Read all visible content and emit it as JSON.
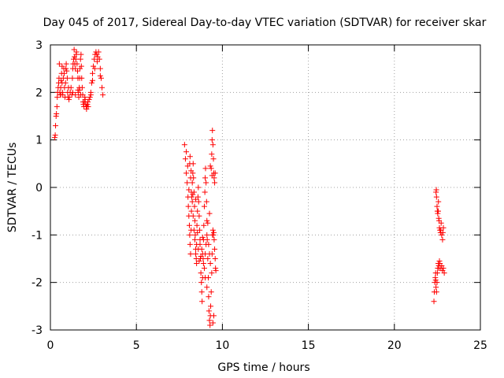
{
  "chart_data": {
    "type": "scatter",
    "title": "Day 045 of 2017, Sidereal Day-to-day VTEC variation (SDTVAR) for receiver skar",
    "xlabel": "GPS time / hours",
    "ylabel": "SDTVAR / TECUs",
    "xlim": [
      0,
      25
    ],
    "ylim": [
      -3,
      3
    ],
    "xticks": [
      0,
      5,
      10,
      15,
      20,
      25
    ],
    "yticks": [
      -3,
      -2,
      -1,
      0,
      1,
      2,
      3
    ],
    "xtick_labels": [
      "0",
      "5",
      "10",
      "15",
      "20",
      "25"
    ],
    "ytick_labels": [
      "-3",
      "-2",
      "-1",
      "0",
      "1",
      "2",
      "3"
    ],
    "grid": true,
    "marker": "+",
    "color": "#ff0000",
    "series": [
      {
        "name": "SDTVAR",
        "points": [
          [
            0.25,
            1.05
          ],
          [
            0.28,
            1.1
          ],
          [
            0.3,
            1.3
          ],
          [
            0.33,
            1.5
          ],
          [
            0.35,
            1.55
          ],
          [
            0.38,
            1.7
          ],
          [
            0.4,
            1.9
          ],
          [
            0.42,
            2.0
          ],
          [
            0.45,
            2.1
          ],
          [
            0.48,
            2.2
          ],
          [
            0.5,
            2.3
          ],
          [
            0.52,
            2.6
          ],
          [
            0.55,
            2.0
          ],
          [
            0.58,
            1.95
          ],
          [
            0.6,
            2.1
          ],
          [
            0.62,
            2.25
          ],
          [
            0.65,
            2.4
          ],
          [
            0.68,
            2.2
          ],
          [
            0.7,
            2.0
          ],
          [
            0.72,
            1.95
          ],
          [
            0.75,
            2.3
          ],
          [
            0.78,
            2.5
          ],
          [
            0.8,
            2.4
          ],
          [
            0.82,
            2.1
          ],
          [
            0.85,
            1.9
          ],
          [
            0.88,
            2.2
          ],
          [
            0.9,
            2.5
          ],
          [
            0.92,
            2.6
          ],
          [
            0.95,
            2.45
          ],
          [
            0.98,
            2.3
          ],
          [
            1.0,
            2.0
          ],
          [
            1.02,
            1.9
          ],
          [
            1.05,
            2.1
          ],
          [
            1.08,
            1.85
          ],
          [
            1.1,
            1.9
          ],
          [
            1.15,
            2.0
          ],
          [
            1.2,
            2.1
          ],
          [
            1.25,
            1.95
          ],
          [
            1.28,
            2.3
          ],
          [
            1.3,
            2.5
          ],
          [
            1.32,
            2.6
          ],
          [
            1.35,
            2.7
          ],
          [
            1.38,
            2.9
          ],
          [
            1.4,
            2.75
          ],
          [
            1.42,
            2.6
          ],
          [
            1.45,
            2.5
          ],
          [
            1.48,
            2.7
          ],
          [
            1.5,
            2.8
          ],
          [
            1.52,
            2.85
          ],
          [
            1.55,
            2.6
          ],
          [
            1.58,
            2.45
          ],
          [
            1.6,
            2.3
          ],
          [
            1.62,
            2.0
          ],
          [
            1.65,
            1.9
          ],
          [
            1.68,
            2.1
          ],
          [
            1.7,
            2.3
          ],
          [
            1.72,
            2.5
          ],
          [
            1.75,
            2.7
          ],
          [
            1.78,
            2.8
          ],
          [
            1.8,
            2.55
          ],
          [
            1.82,
            2.3
          ],
          [
            1.85,
            2.1
          ],
          [
            1.88,
            1.95
          ],
          [
            1.9,
            1.8
          ],
          [
            1.92,
            1.75
          ],
          [
            1.95,
            1.7
          ],
          [
            1.98,
            1.8
          ],
          [
            2.0,
            1.9
          ],
          [
            2.02,
            1.85
          ],
          [
            2.05,
            1.75
          ],
          [
            2.08,
            1.7
          ],
          [
            2.1,
            1.65
          ],
          [
            2.12,
            1.7
          ],
          [
            2.15,
            1.75
          ],
          [
            2.18,
            1.8
          ],
          [
            2.2,
            1.7
          ],
          [
            2.25,
            1.85
          ],
          [
            2.3,
            1.9
          ],
          [
            2.35,
            2.0
          ],
          [
            2.4,
            2.2
          ],
          [
            2.45,
            2.4
          ],
          [
            2.5,
            2.55
          ],
          [
            2.55,
            2.7
          ],
          [
            2.6,
            2.8
          ],
          [
            2.65,
            2.85
          ],
          [
            2.7,
            2.8
          ],
          [
            2.75,
            2.75
          ],
          [
            2.8,
            2.85
          ],
          [
            2.85,
            2.7
          ],
          [
            2.9,
            2.5
          ],
          [
            2.95,
            2.3
          ],
          [
            3.0,
            2.1
          ],
          [
            3.05,
            1.95
          ],
          [
            2.72,
            2.65
          ],
          [
            2.58,
            2.5
          ],
          [
            2.45,
            2.25
          ],
          [
            2.35,
            1.95
          ],
          [
            1.6,
            2.05
          ],
          [
            1.45,
            1.95
          ],
          [
            1.3,
            2.0
          ],
          [
            0.68,
            2.55
          ],
          [
            0.6,
            1.95
          ],
          [
            1.7,
            2.05
          ],
          [
            1.76,
            1.95
          ],
          [
            2.9,
            2.35
          ],
          [
            7.8,
            0.9
          ],
          [
            7.85,
            0.6
          ],
          [
            7.9,
            0.3
          ],
          [
            7.95,
            0.1
          ],
          [
            8.0,
            -0.2
          ],
          [
            8.02,
            -0.4
          ],
          [
            8.05,
            -0.6
          ],
          [
            8.08,
            -0.8
          ],
          [
            8.1,
            -1.0
          ],
          [
            8.12,
            -1.2
          ],
          [
            8.15,
            -1.4
          ],
          [
            8.18,
            -0.9
          ],
          [
            8.2,
            -0.5
          ],
          [
            8.22,
            -0.2
          ],
          [
            8.25,
            0.1
          ],
          [
            8.28,
            0.3
          ],
          [
            8.3,
            0.5
          ],
          [
            8.32,
            0.2
          ],
          [
            8.35,
            -0.1
          ],
          [
            8.38,
            -0.4
          ],
          [
            8.4,
            -0.7
          ],
          [
            8.42,
            -1.0
          ],
          [
            8.45,
            -1.3
          ],
          [
            8.48,
            -1.5
          ],
          [
            8.5,
            -1.2
          ],
          [
            8.52,
            -0.8
          ],
          [
            8.55,
            -0.5
          ],
          [
            8.58,
            -0.2
          ],
          [
            8.6,
            0.0
          ],
          [
            8.62,
            -0.3
          ],
          [
            8.65,
            -0.6
          ],
          [
            8.68,
            -0.9
          ],
          [
            8.7,
            -1.2
          ],
          [
            8.72,
            -1.5
          ],
          [
            8.75,
            -1.8
          ],
          [
            8.78,
            -2.0
          ],
          [
            8.8,
            -2.2
          ],
          [
            8.82,
            -2.4
          ],
          [
            8.85,
            -1.9
          ],
          [
            8.88,
            -1.5
          ],
          [
            8.9,
            -1.1
          ],
          [
            8.92,
            -0.8
          ],
          [
            8.95,
            -0.4
          ],
          [
            8.98,
            -0.1
          ],
          [
            9.0,
            0.2
          ],
          [
            9.02,
            0.4
          ],
          [
            9.05,
            0.1
          ],
          [
            9.08,
            -0.3
          ],
          [
            9.1,
            -0.7
          ],
          [
            9.12,
            -1.1
          ],
          [
            9.15,
            -1.5
          ],
          [
            9.18,
            -1.9
          ],
          [
            9.2,
            -2.3
          ],
          [
            9.22,
            -2.6
          ],
          [
            9.25,
            -2.8
          ],
          [
            9.28,
            -2.9
          ],
          [
            9.3,
            -2.7
          ],
          [
            9.32,
            -2.5
          ],
          [
            9.35,
            -2.2
          ],
          [
            9.38,
            -1.8
          ],
          [
            9.4,
            -1.4
          ],
          [
            9.42,
            -1.0
          ],
          [
            9.45,
            -0.9
          ],
          [
            9.48,
            -1.0
          ],
          [
            9.5,
            -0.95
          ],
          [
            9.52,
            -1.1
          ],
          [
            9.55,
            -1.3
          ],
          [
            9.58,
            -1.5
          ],
          [
            9.6,
            -1.7
          ],
          [
            9.62,
            -1.75
          ],
          [
            9.35,
            0.4
          ],
          [
            9.38,
            0.7
          ],
          [
            9.4,
            1.0
          ],
          [
            9.42,
            1.2
          ],
          [
            9.45,
            0.9
          ],
          [
            9.48,
            0.6
          ],
          [
            9.5,
            0.3
          ],
          [
            9.52,
            0.2
          ],
          [
            9.55,
            0.1
          ],
          [
            9.58,
            0.3
          ],
          [
            8.1,
            0.5
          ],
          [
            8.15,
            0.2
          ],
          [
            8.2,
            -0.1
          ],
          [
            8.25,
            -0.3
          ],
          [
            8.3,
            -0.6
          ],
          [
            8.35,
            -0.9
          ],
          [
            8.4,
            -1.1
          ],
          [
            8.45,
            -1.4
          ],
          [
            8.5,
            -1.6
          ],
          [
            8.6,
            -1.3
          ],
          [
            8.7,
            -1.1
          ],
          [
            8.8,
            -1.3
          ],
          [
            8.9,
            -1.6
          ],
          [
            9.0,
            -1.4
          ],
          [
            9.05,
            -1.2
          ],
          [
            9.1,
            -1.0
          ],
          [
            9.2,
            -1.2
          ],
          [
            9.25,
            -1.4
          ],
          [
            9.3,
            -1.6
          ],
          [
            9.45,
            -2.85
          ],
          [
            9.5,
            -2.7
          ],
          [
            9.1,
            -2.1
          ],
          [
            9.0,
            -1.9
          ],
          [
            8.95,
            -1.7
          ],
          [
            8.85,
            -1.4
          ],
          [
            7.9,
            0.75
          ],
          [
            7.98,
            0.45
          ],
          [
            8.05,
            -0.05
          ],
          [
            8.12,
            0.65
          ],
          [
            8.18,
            0.35
          ],
          [
            8.28,
            -0.15
          ],
          [
            8.45,
            -0.25
          ],
          [
            8.55,
            -0.95
          ],
          [
            8.65,
            -1.55
          ],
          [
            8.75,
            -1.45
          ],
          [
            8.85,
            -1.05
          ],
          [
            9.15,
            -0.75
          ],
          [
            9.25,
            -0.55
          ],
          [
            9.3,
            0.45
          ],
          [
            9.4,
            0.25
          ],
          [
            22.3,
            -2.4
          ],
          [
            22.32,
            -2.2
          ],
          [
            22.35,
            -2.0
          ],
          [
            22.38,
            -1.9
          ],
          [
            22.4,
            -1.8
          ],
          [
            22.42,
            -2.1
          ],
          [
            22.45,
            -2.2
          ],
          [
            22.48,
            -2.0
          ],
          [
            22.5,
            -1.8
          ],
          [
            22.52,
            -1.7
          ],
          [
            22.55,
            -1.6
          ],
          [
            22.58,
            -1.65
          ],
          [
            22.6,
            -1.7
          ],
          [
            22.62,
            -1.55
          ],
          [
            22.65,
            -1.6
          ],
          [
            22.7,
            -1.7
          ],
          [
            22.75,
            -1.65
          ],
          [
            22.8,
            -1.75
          ],
          [
            22.85,
            -1.7
          ],
          [
            22.9,
            -1.8
          ],
          [
            22.42,
            -0.1
          ],
          [
            22.45,
            -0.2
          ],
          [
            22.48,
            -0.4
          ],
          [
            22.5,
            -0.5
          ],
          [
            22.52,
            -0.55
          ],
          [
            22.55,
            -0.5
          ],
          [
            22.58,
            -0.65
          ],
          [
            22.6,
            -0.7
          ],
          [
            22.62,
            -0.85
          ],
          [
            22.65,
            -0.9
          ],
          [
            22.68,
            -0.95
          ],
          [
            22.7,
            -0.9
          ],
          [
            22.75,
            -1.0
          ],
          [
            22.8,
            -1.1
          ],
          [
            22.85,
            -0.85
          ],
          [
            22.44,
            -0.05
          ],
          [
            22.56,
            -0.3
          ],
          [
            22.72,
            -0.75
          ],
          [
            22.82,
            -0.95
          ],
          [
            22.4,
            -1.95
          ]
        ]
      }
    ]
  }
}
